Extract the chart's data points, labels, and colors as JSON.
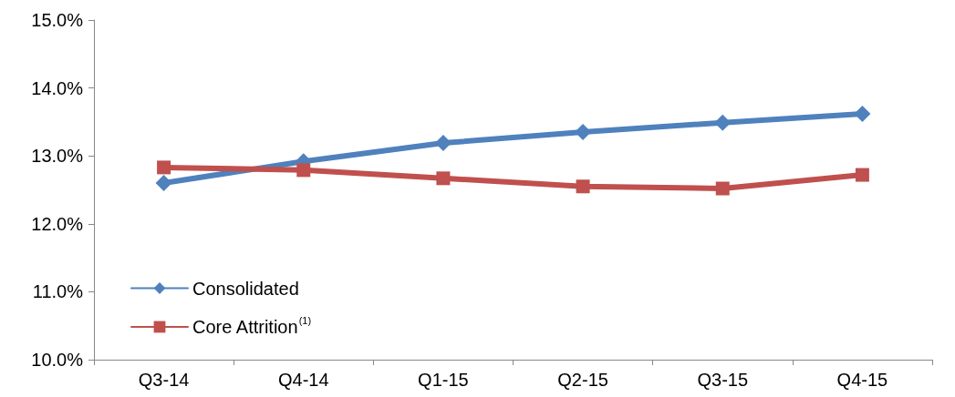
{
  "chart_data": {
    "type": "line",
    "categories": [
      "Q3-14",
      "Q4-14",
      "Q1-15",
      "Q2-15",
      "Q3-15",
      "Q4-15"
    ],
    "series": [
      {
        "name": "Consolidated",
        "color": "#4f81bd",
        "marker": "diamond",
        "values": [
          12.6,
          12.92,
          13.19,
          13.35,
          13.49,
          13.62
        ]
      },
      {
        "name": "Core Attrition$^{(1)}$",
        "color": "#c0504d",
        "marker": "square",
        "values": [
          12.83,
          12.79,
          12.67,
          12.55,
          12.52,
          12.72
        ]
      }
    ],
    "ylim": [
      10,
      15
    ],
    "yticks": [
      {
        "value": 10,
        "label": "10.0%"
      },
      {
        "value": 11,
        "label": "11.0%"
      },
      {
        "value": 12,
        "label": "12.0%"
      },
      {
        "value": 13,
        "label": "13.0%"
      },
      {
        "value": 14,
        "label": "14.0%"
      },
      {
        "value": 15,
        "label": "15.0%"
      }
    ],
    "grid": false,
    "legend": "bottom left",
    "line_style": "solid"
  }
}
